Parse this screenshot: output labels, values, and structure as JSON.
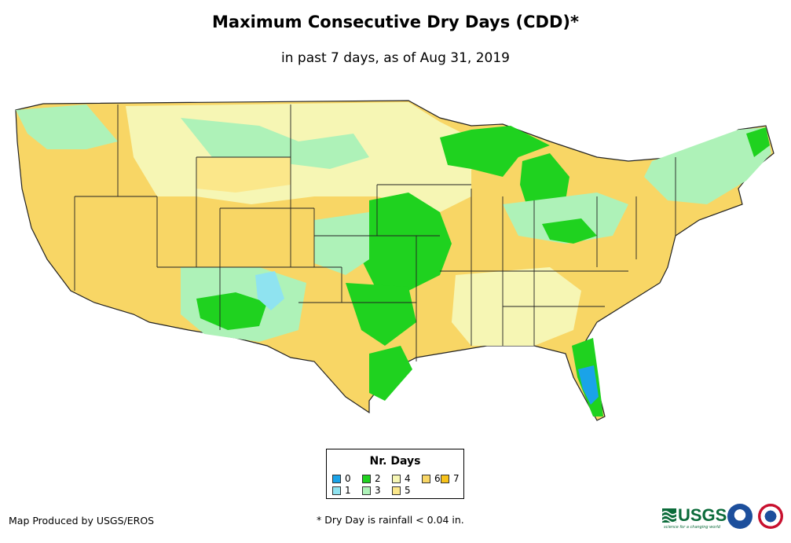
{
  "title": "Maximum Consecutive Dry Days (CDD)*",
  "subtitle": "in past 7 days, as of Aug 31, 2019",
  "legend": {
    "title": "Nr. Days",
    "items": [
      {
        "label": "0",
        "color": "#1aa3e8"
      },
      {
        "label": "1",
        "color": "#8fe3f0"
      },
      {
        "label": "2",
        "color": "#1fd21f"
      },
      {
        "label": "3",
        "color": "#aef2b8"
      },
      {
        "label": "4",
        "color": "#f6f6b4"
      },
      {
        "label": "5",
        "color": "#fbe78a"
      },
      {
        "label": "6",
        "color": "#f8d665"
      },
      {
        "label": "7",
        "color": "#f7c21a"
      }
    ]
  },
  "footer": {
    "credit": "Map Produced by USGS/EROS",
    "note": "* Dry Day is rainfall < 0.04 in."
  },
  "logos": {
    "usgs": "USGS",
    "usgs_tagline": "science for a changing world"
  }
}
